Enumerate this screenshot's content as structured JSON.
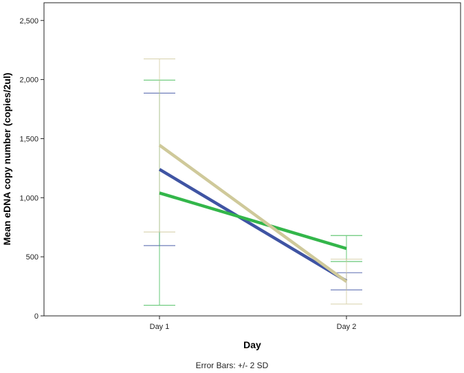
{
  "chart_data": {
    "type": "line",
    "categories": [
      "Day 1",
      "Day 2"
    ],
    "series": [
      {
        "color": "#3f54a3",
        "values": [
          1240,
          295
        ],
        "error_low": [
          595,
          220
        ],
        "error_high": [
          1885,
          365
        ]
      },
      {
        "color": "#33b64a",
        "values": [
          1040,
          570
        ],
        "error_low": [
          90,
          460
        ],
        "error_high": [
          1995,
          680
        ]
      },
      {
        "color": "#cfc99a",
        "values": [
          1445,
          290
        ],
        "error_low": [
          710,
          100
        ],
        "error_high": [
          2175,
          480
        ]
      }
    ],
    "xlabel": "Day",
    "ylabel": "Mean eDNA copy number (copies/2ul)",
    "ylim": [
      0,
      2650
    ],
    "yticks": [
      0,
      500,
      1000,
      1500,
      2000,
      2500
    ],
    "ytick_labels": [
      "0",
      "500",
      "1,000",
      "1,500",
      "2,000",
      "2,500"
    ],
    "grid": false,
    "legend": "none",
    "footnote": "Error Bars: +/- 2 SD"
  }
}
